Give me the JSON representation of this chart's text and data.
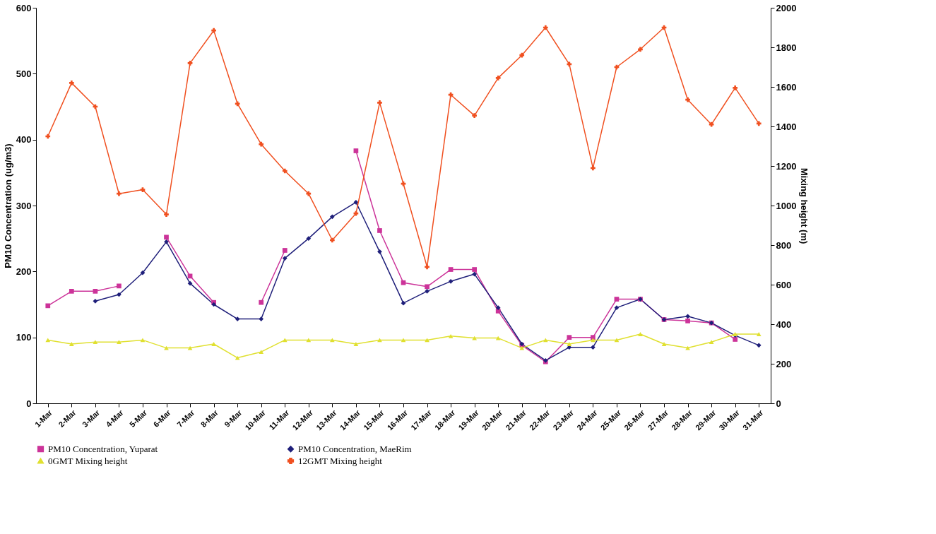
{
  "chart_data": {
    "type": "line",
    "ylabel": "PM10 Concentration (ug/m3)",
    "y2label": "Mixing height (m)",
    "categories": [
      "1-Mar",
      "2-Mar",
      "3-Mar",
      "4-Mar",
      "5-Mar",
      "6-Mar",
      "7-Mar",
      "8-Mar",
      "9-Mar",
      "10-Mar",
      "11-Mar",
      "12-Mar",
      "13-Mar",
      "14-Mar",
      "15-Mar",
      "16-Mar",
      "17-Mar",
      "18-Mar",
      "19-Mar",
      "20-Mar",
      "21-Mar",
      "22-Mar",
      "23-Mar",
      "24-Mar",
      "25-Mar",
      "26-Mar",
      "27-Mar",
      "28-Mar",
      "29-Mar",
      "30-Mar",
      "31-Mar"
    ],
    "ylim": [
      0,
      600
    ],
    "yticks": [
      0,
      100,
      200,
      300,
      400,
      500,
      600
    ],
    "y2lim": [
      0,
      2000
    ],
    "y2ticks": [
      0,
      200,
      400,
      600,
      800,
      1000,
      1200,
      1400,
      1600,
      1800,
      2000
    ],
    "grid": false,
    "legend": "bottom",
    "line_style": "solid",
    "series": [
      {
        "name": "PM10 Concentration, Yuparat",
        "color": "#cc3399",
        "marker": "square",
        "values": [
          148,
          170,
          170,
          178,
          null,
          252,
          193,
          153,
          null,
          153,
          232,
          null,
          null,
          383,
          262,
          183,
          177,
          203,
          203,
          140,
          88,
          63,
          100,
          100,
          158,
          158,
          127,
          125,
          122,
          97,
          null
        ]
      },
      {
        "name": "PM10 Concentration, MaeRim",
        "color": "#1f1f7a",
        "marker": "diamond",
        "values": [
          null,
          null,
          155,
          165,
          198,
          245,
          182,
          150,
          128,
          128,
          220,
          250,
          283,
          305,
          230,
          152,
          170,
          185,
          196,
          145,
          90,
          65,
          85,
          85,
          145,
          158,
          127,
          132,
          122,
          103,
          88
        ]
      },
      {
        "name": "0GMT Mixing height",
        "color": "#e0e030",
        "marker": "triangle",
        "axis": "y2",
        "values": [
          320,
          300,
          310,
          310,
          320,
          280,
          280,
          300,
          230,
          260,
          320,
          320,
          320,
          300,
          320,
          320,
          320,
          340,
          330,
          330,
          280,
          320,
          300,
          320,
          320,
          350,
          300,
          280,
          310,
          350,
          350
        ]
      },
      {
        "name": "12GMT Mixing height",
        "color": "#f05020",
        "marker": "cross",
        "axis": "y2",
        "values": [
          1350,
          1620,
          1500,
          1060,
          1080,
          955,
          1720,
          1885,
          1515,
          1310,
          1175,
          1060,
          825,
          960,
          1520,
          1110,
          690,
          1560,
          1455,
          1645,
          1760,
          1900,
          1715,
          1190,
          1700,
          1790,
          1900,
          1535,
          1410,
          1595,
          1415
        ]
      }
    ]
  }
}
